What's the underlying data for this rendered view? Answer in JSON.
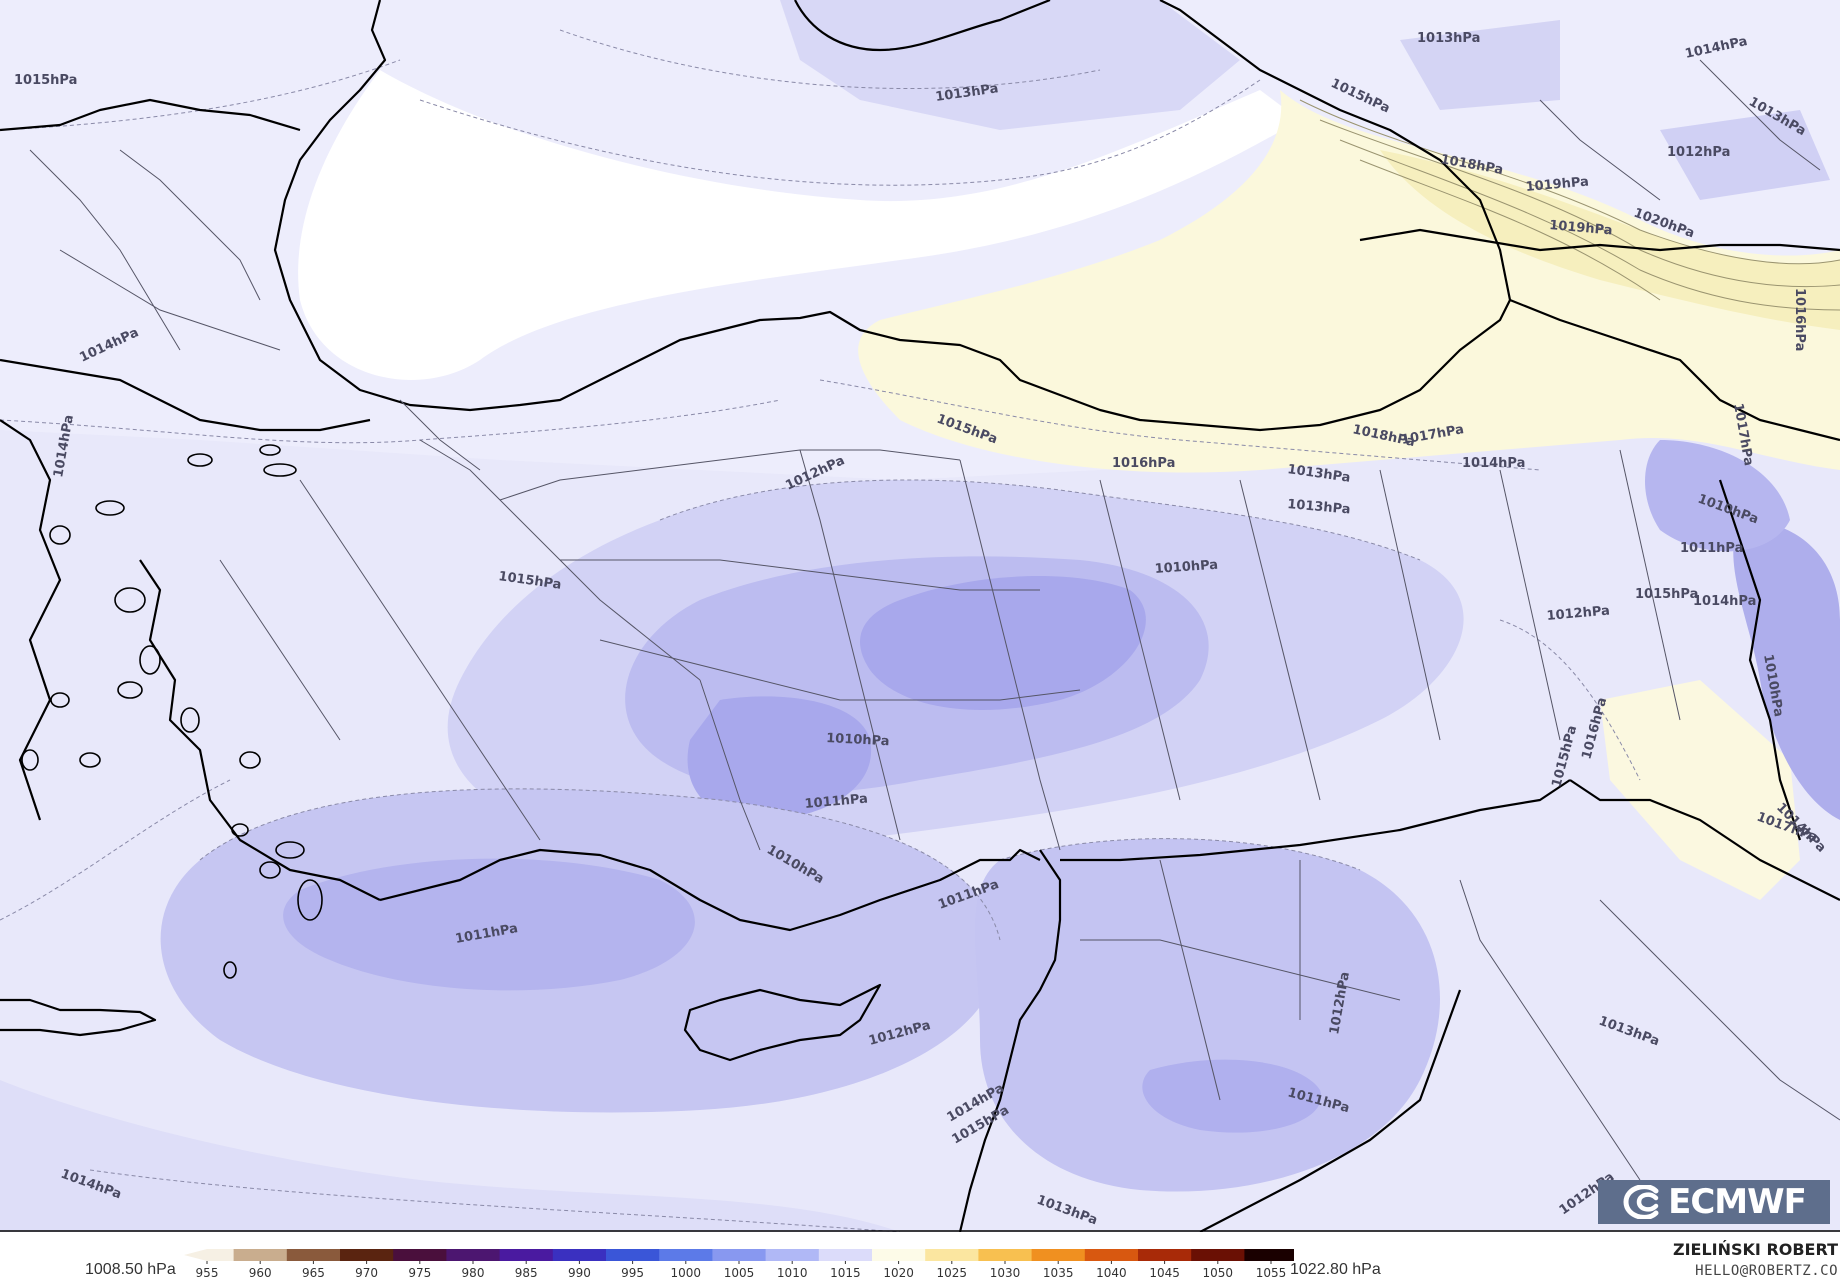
{
  "map": {
    "isobar_labels": [
      "1015hPa",
      "1013hPa",
      "1013hPa",
      "1014hPa",
      "1013hPa",
      "1015hPa",
      "1012hPa",
      "1018hPa",
      "1019hPa",
      "1020hPa",
      "1019hPa",
      "1016hPa",
      "1014hPa",
      "1014hPa",
      "1015hPa",
      "1012hPa",
      "1016hPa",
      "1018hPa",
      "1017hPa",
      "1013hPa",
      "1014hPa",
      "1017hPa",
      "1013hPa",
      "1010hPa",
      "1011hPa",
      "1015hPa",
      "1010hPa",
      "1012hPa",
      "1015hPa",
      "1014hPa",
      "1010hPa",
      "1016hPa",
      "1015hPa",
      "1010hPa",
      "1011hPa",
      "1014hPa",
      "1017hPa",
      "1010hPa",
      "1011hPa",
      "1011hPa",
      "1012hPa",
      "1012hPa",
      "1013hPa",
      "1014hPa",
      "1015hPa",
      "1011hPa",
      "1014hPa",
      "1013hPa",
      "1012hPa"
    ],
    "colors": {
      "sea_white": "#ffffff",
      "field_light": "#ebebfb",
      "field_mid": "#d6d6f6",
      "field_deep": "#bcbcf0",
      "field_deepest": "#a4a4ec",
      "high_yellow": "#fbf8dc",
      "high_yellow2": "#f5efbf",
      "borders": "#000000"
    }
  },
  "colorbar": {
    "min_label": "1008.50 hPa",
    "max_label": "1022.80 hPa",
    "ticks": [
      "955",
      "960",
      "965",
      "970",
      "975",
      "980",
      "985",
      "990",
      "995",
      "1000",
      "1005",
      "1010",
      "1015",
      "1020",
      "1025",
      "1030",
      "1035",
      "1040",
      "1045",
      "1050",
      "1055"
    ],
    "colors": [
      "#f6f0e4",
      "#c9ad8e",
      "#8a5a3c",
      "#5a2410",
      "#4a0f3c",
      "#4c1670",
      "#4a1aa0",
      "#3a30c0",
      "#3a56d8",
      "#5c7ae8",
      "#8898f0",
      "#b0b8f6",
      "#dcdcfa",
      "#fdfbe8",
      "#fbe6a0",
      "#f8c050",
      "#f09020",
      "#d85810",
      "#a82a08",
      "#6a1004",
      "#1a0000"
    ]
  },
  "credits": {
    "author": "ZIELIŃSKI ROBERT",
    "email": "HELLO@ROBERTZ.CO",
    "logo_text": "ECMWF"
  }
}
